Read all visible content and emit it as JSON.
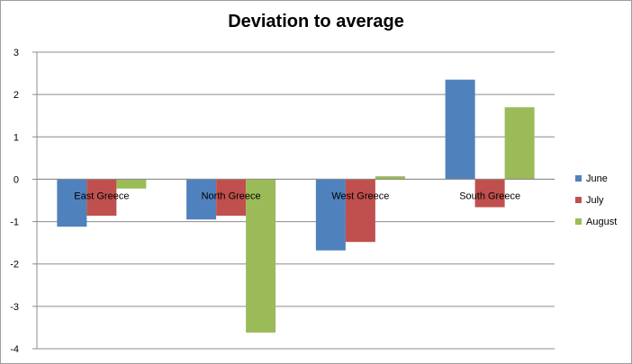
{
  "chart_data": {
    "type": "bar",
    "title": "Deviation to average",
    "categories": [
      "East Greece",
      "North Greece",
      "West Greece",
      "South Greece"
    ],
    "series": [
      {
        "name": "June",
        "color": "#4f81bd",
        "values": [
          -1.12,
          -0.95,
          -1.68,
          2.35
        ]
      },
      {
        "name": "July",
        "color": "#c0504d",
        "values": [
          -0.86,
          -0.86,
          -1.48,
          -0.66
        ]
      },
      {
        "name": "August",
        "color": "#9bbb59",
        "values": [
          -0.22,
          -3.62,
          0.07,
          1.7
        ]
      }
    ],
    "ylim": [
      -4,
      3
    ],
    "yticks": [
      "3",
      "2",
      "1",
      "0",
      "-1",
      "-2",
      "-3",
      "-4"
    ],
    "grid": true,
    "legend": "right",
    "xlabel": "",
    "ylabel": ""
  }
}
